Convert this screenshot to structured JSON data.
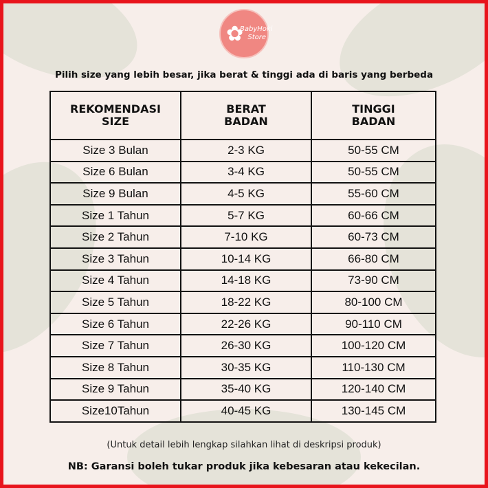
{
  "logo": {
    "line1": "BabyHoki",
    "line2": "Store"
  },
  "headline": "Pilih size yang lebih besar, jika berat & tinggi ada di baris yang berbeda",
  "table": {
    "headers": [
      [
        "REKOMENDASI",
        "SIZE"
      ],
      [
        "BERAT",
        "BADAN"
      ],
      [
        "TINGGI",
        "BADAN"
      ]
    ],
    "rows": [
      [
        "Size 3 Bulan",
        "2-3 KG",
        "50-55 CM"
      ],
      [
        "Size 6 Bulan",
        "3-4 KG",
        "50-55 CM"
      ],
      [
        "Size 9 Bulan",
        "4-5 KG",
        "55-60 CM"
      ],
      [
        "Size 1 Tahun",
        "5-7 KG",
        "60-66 CM"
      ],
      [
        "Size 2 Tahun",
        "7-10 KG",
        "60-73 CM"
      ],
      [
        "Size 3 Tahun",
        "10-14 KG",
        "66-80 CM"
      ],
      [
        "Size 4 Tahun",
        "14-18 KG",
        "73-90 CM"
      ],
      [
        "Size 5 Tahun",
        "18-22 KG",
        "80-100 CM"
      ],
      [
        "Size 6 Tahun",
        "22-26 KG",
        "90-110 CM"
      ],
      [
        "Size 7 Tahun",
        "26-30 KG",
        "100-120 CM"
      ],
      [
        "Size 8 Tahun",
        "30-35 KG",
        "110-130 CM"
      ],
      [
        "Size 9 Tahun",
        "35-40 KG",
        "120-140 CM"
      ],
      [
        "Size10Tahun",
        "40-45 KG",
        "130-145 CM"
      ]
    ]
  },
  "note": "(Untuk detail lebih lengkap silahkan lihat di deskripsi produk)",
  "nb": "NB: Garansi boleh tukar produk jika kebesaran atau kekecilan.",
  "colors": {
    "border": "#e8141c",
    "logo": "#f08782",
    "background": "#f7eeea"
  }
}
